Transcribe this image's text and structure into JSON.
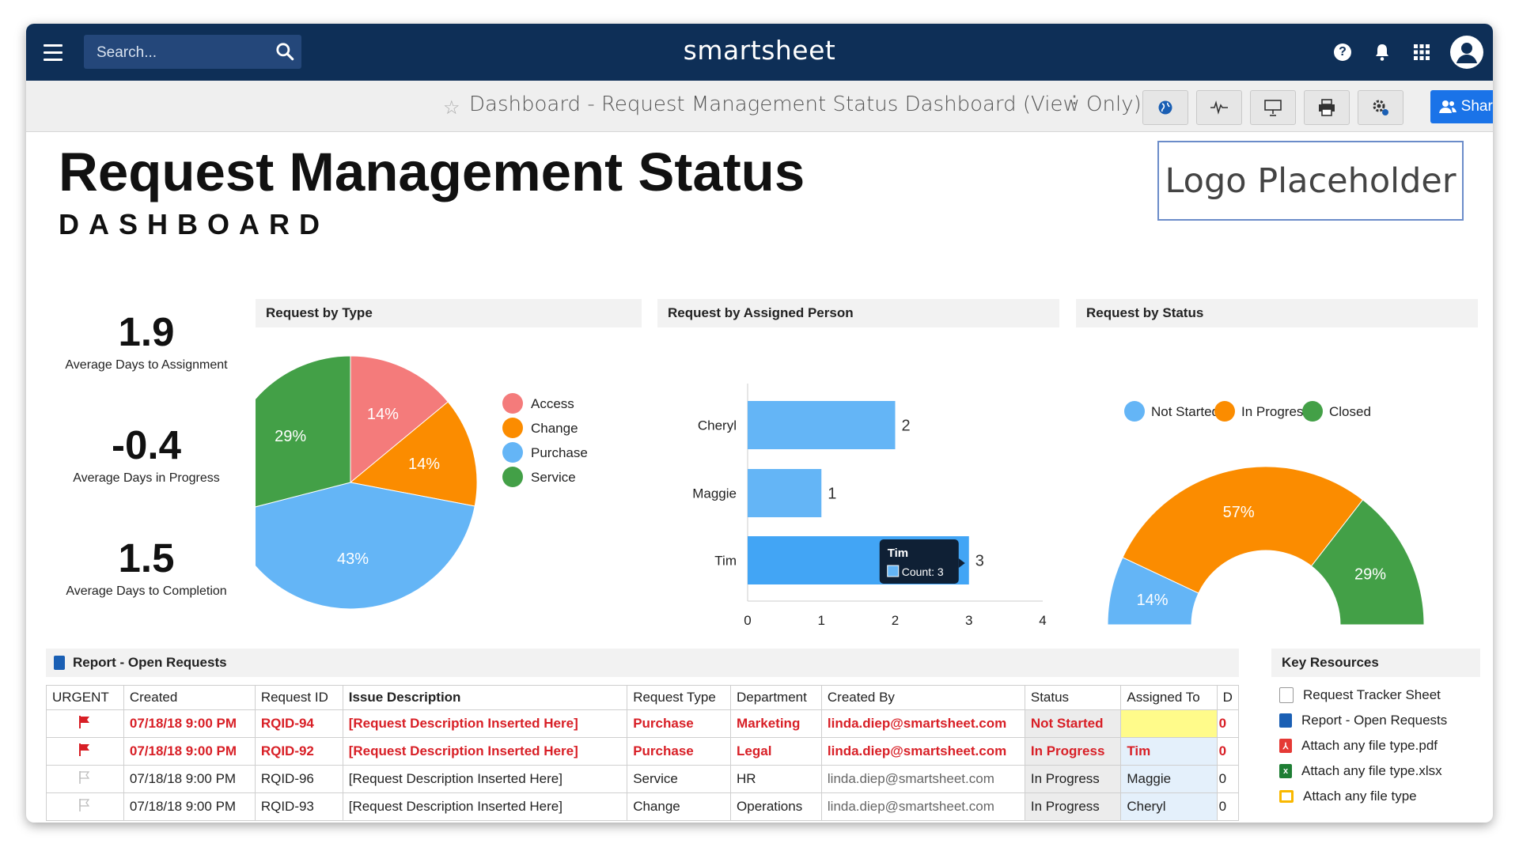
{
  "topbar": {
    "search_placeholder": "Search...",
    "brand": "smartsheet",
    "icons": [
      "menu-icon",
      "search-icon",
      "help-icon",
      "bell-icon",
      "apps-grid-icon",
      "user-avatar-icon"
    ],
    "help_glyph": "?"
  },
  "subbar": {
    "title": "Dashboard - Request Management Status Dashboard (View Only)",
    "tools": [
      "globe-icon",
      "activity-icon",
      "presentation-icon",
      "print-icon",
      "settings-icon"
    ],
    "share_label": "Share"
  },
  "header": {
    "title": "Request Management Status",
    "subtitle": "DASHBOARD",
    "logo": "Logo Placeholder"
  },
  "metrics": [
    {
      "value": "1.9",
      "label": "Average Days to Assignment"
    },
    {
      "value": "-0.4",
      "label": "Average Days in Progress"
    },
    {
      "value": "1.5",
      "label": "Average Days to Completion"
    }
  ],
  "widgets": {
    "type_title": "Request by Type",
    "person_title": "Request by Assigned Person",
    "status_title": "Request by Status"
  },
  "chart_data": [
    {
      "type": "pie",
      "title": "Request by Type",
      "categories": [
        "Access",
        "Change",
        "Purchase",
        "Service"
      ],
      "values": [
        14,
        14,
        43,
        29
      ],
      "labels": [
        "14%",
        "14%",
        "43%",
        "29%"
      ],
      "colors": [
        "#f47b7b",
        "#fb8c00",
        "#64b5f6",
        "#43a047"
      ],
      "legend": "right"
    },
    {
      "type": "bar",
      "orientation": "horizontal",
      "title": "Request by Assigned Person",
      "categories": [
        "Cheryl",
        "Maggie",
        "Tim"
      ],
      "values": [
        2,
        1,
        3
      ],
      "xlim": [
        0,
        4
      ],
      "xticks": [
        "0",
        "1",
        "2",
        "3",
        "4"
      ],
      "color": "#64b5f6",
      "highlight_color": "#42a5f5",
      "tooltip": {
        "name": "Tim",
        "text": "Count: 3"
      }
    },
    {
      "type": "pie",
      "variant": "half-donut",
      "title": "Request by Status",
      "categories": [
        "Not Started",
        "In Progress",
        "Closed"
      ],
      "values": [
        14,
        57,
        29
      ],
      "labels": [
        "14%",
        "57%",
        "29%"
      ],
      "colors": [
        "#64b5f6",
        "#fb8c00",
        "#43a047"
      ],
      "legend": "top"
    }
  ],
  "report": {
    "title": "Report - Open Requests",
    "columns": [
      "URGENT",
      "Created",
      "Request ID",
      "Issue Description",
      "Request Type",
      "Department",
      "Created By",
      "Status",
      "Assigned To",
      "D"
    ],
    "rows": [
      {
        "urgent": true,
        "created": "07/18/18 9:00 PM",
        "id": "RQID-94",
        "desc": "[Request Description Inserted Here]",
        "type": "Purchase",
        "dept": "Marketing",
        "by": "linda.diep@smartsheet.com",
        "status": "Not Started",
        "assigned": "",
        "d": "0"
      },
      {
        "urgent": true,
        "created": "07/18/18 9:00 PM",
        "id": "RQID-92",
        "desc": "[Request Description Inserted Here]",
        "type": "Purchase",
        "dept": "Legal",
        "by": "linda.diep@smartsheet.com",
        "status": "In Progress",
        "assigned": "Tim",
        "d": "0"
      },
      {
        "urgent": false,
        "created": "07/18/18 9:00 PM",
        "id": "RQID-96",
        "desc": "[Request Description Inserted Here]",
        "type": "Service",
        "dept": "HR",
        "by": "linda.diep@smartsheet.com",
        "status": "In Progress",
        "assigned": "Maggie",
        "d": "0"
      },
      {
        "urgent": false,
        "created": "07/18/18 9:00 PM",
        "id": "RQID-93",
        "desc": "[Request Description Inserted Here]",
        "type": "Change",
        "dept": "Operations",
        "by": "linda.diep@smartsheet.com",
        "status": "In Progress",
        "assigned": "Cheryl",
        "d": "0"
      }
    ]
  },
  "resources": {
    "title": "Key Resources",
    "items": [
      {
        "label": "Request Tracker Sheet",
        "icon": "sheet-icon",
        "color": "#ffffff"
      },
      {
        "label": "Report - Open Requests",
        "icon": "report-icon",
        "color": "#1a5fb4"
      },
      {
        "label": "Attach any file type.pdf",
        "icon": "pdf-icon",
        "color": "#e53935"
      },
      {
        "label": "Attach any file type.xlsx",
        "icon": "excel-icon",
        "color": "#1e7e34"
      },
      {
        "label": "Attach any file type",
        "icon": "file-icon",
        "color": "#f9b800"
      }
    ]
  }
}
